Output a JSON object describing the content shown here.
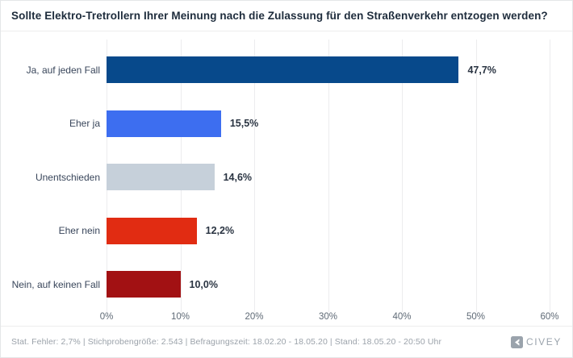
{
  "header": {
    "title": "Sollte Elektro-Tretrollern Ihrer Meinung nach die Zulassung für den Straßenverkehr entzogen werden?"
  },
  "chart_data": {
    "type": "bar",
    "orientation": "horizontal",
    "title": "Sollte Elektro-Tretrollern Ihrer Meinung nach die Zulassung für den Straßenverkehr entzogen werden?",
    "categories": [
      "Ja, auf jeden Fall",
      "Eher ja",
      "Unentschieden",
      "Eher nein",
      "Nein, auf keinen Fall"
    ],
    "values": [
      47.7,
      15.5,
      14.6,
      12.2,
      10.0
    ],
    "value_labels": [
      "47,7%",
      "15,5%",
      "14,6%",
      "12,2%",
      "10,0%"
    ],
    "bar_colors": [
      "#07498b",
      "#3d6ef0",
      "#c6d0da",
      "#e12c12",
      "#a21113"
    ],
    "x_ticks": [
      "0%",
      "10%",
      "20%",
      "30%",
      "40%",
      "50%",
      "60%"
    ],
    "xlim": [
      0,
      60
    ],
    "xlabel": "",
    "ylabel": "",
    "grid": "vertical",
    "legend": "none"
  },
  "footer": {
    "stats": "Stat. Fehler: 2,7% | Stichprobengröße: 2.543 | Befragungszeit: 18.02.20 - 18.05.20 | Stand: 18.05.20 - 20:50 Uhr",
    "brand": "CIVEY"
  },
  "colors": {
    "title_text": "#1e2c3c",
    "category_text": "#38455a",
    "value_text": "#2a3442",
    "tick_text": "#5f6a76",
    "footer_text": "#9ba2aa",
    "brand_gray": "#9aa3ac",
    "gridline": "#ececee"
  }
}
